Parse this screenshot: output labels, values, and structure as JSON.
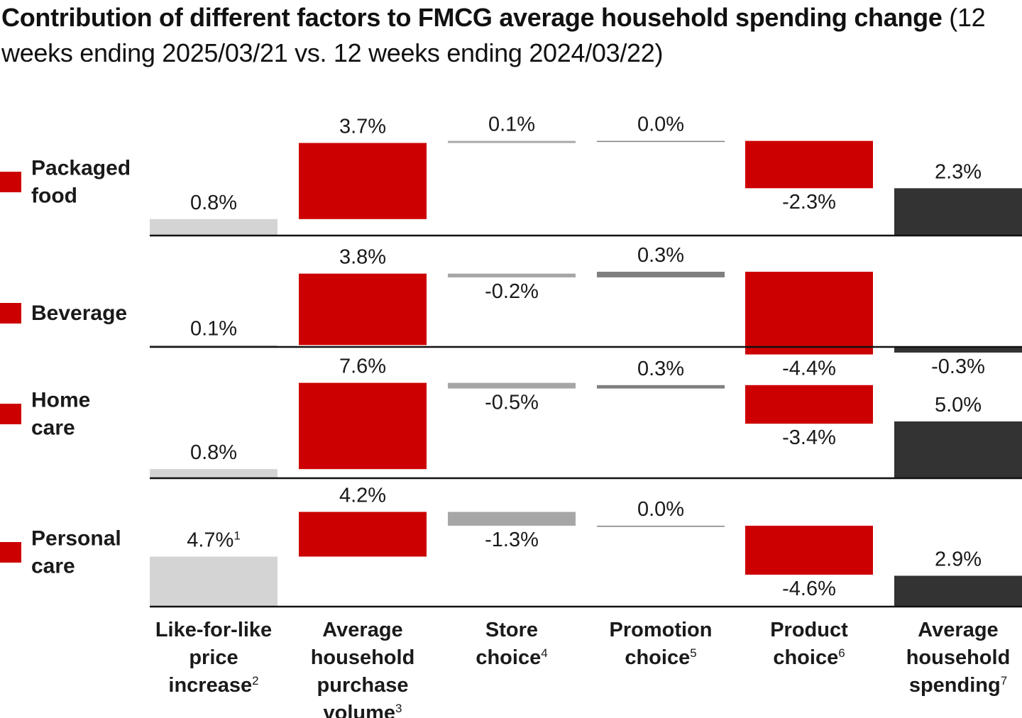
{
  "title": {
    "bold": "Contribution of different factors to FMCG average household spending change",
    "regular": "(12 weeks ending 2025/03/21 vs. 12 weeks ending 2024/03/22)"
  },
  "colors": {
    "price": "#d4d4d4",
    "volume": "#cc0000",
    "store": "#a6a6a6",
    "promotion": "#7f7f7f",
    "product": "#cc0000",
    "total": "#333333",
    "legend": "#cc0000",
    "axis": "#111111"
  },
  "chart_data": {
    "type": "waterfall",
    "title": "Contribution of different factors to FMCG average household spending change (12 weeks ending 2025/03/21 vs. 12 weeks ending 2024/03/22)",
    "unit": "%",
    "columns": [
      {
        "key": "price",
        "lines": [
          "Like-for-like",
          "price",
          "increase"
        ],
        "footnote": "2"
      },
      {
        "key": "volume",
        "lines": [
          "Average",
          "household",
          "purchase",
          "volume"
        ],
        "footnote": "3"
      },
      {
        "key": "store",
        "lines": [
          "Store",
          "choice"
        ],
        "footnote": "4"
      },
      {
        "key": "promotion",
        "lines": [
          "Promotion",
          "choice"
        ],
        "footnote": "5"
      },
      {
        "key": "product",
        "lines": [
          "Product",
          "choice"
        ],
        "footnote": "6"
      },
      {
        "key": "total",
        "lines": [
          "Average",
          "household",
          "spending"
        ],
        "footnote": "7"
      }
    ],
    "series": [
      {
        "name": "Packaged food",
        "name_lines": [
          "Packaged",
          "food"
        ],
        "values": [
          0.8,
          3.7,
          0.1,
          0.0,
          -2.3,
          2.3
        ],
        "labels": [
          "0.8%",
          "3.7%",
          "0.1%",
          "0.0%",
          "-2.3%",
          "2.3%"
        ],
        "label_footnotes": [
          "",
          "",
          "",
          "",
          "",
          ""
        ]
      },
      {
        "name": "Beverage",
        "name_lines": [
          "Beverage"
        ],
        "values": [
          0.1,
          3.8,
          -0.2,
          0.3,
          -4.4,
          -0.3
        ],
        "labels": [
          "0.1%",
          "3.8%",
          "-0.2%",
          "0.3%",
          "-4.4%",
          "-0.3%"
        ],
        "label_footnotes": [
          "",
          "",
          "",
          "",
          "",
          ""
        ]
      },
      {
        "name": "Home care",
        "name_lines": [
          "Home",
          "care"
        ],
        "values": [
          0.8,
          7.6,
          -0.5,
          0.3,
          -3.4,
          5.0
        ],
        "labels": [
          "0.8%",
          "7.6%",
          "-0.5%",
          "0.3%",
          "-3.4%",
          "5.0%"
        ],
        "label_footnotes": [
          "",
          "",
          "",
          "",
          "",
          ""
        ]
      },
      {
        "name": "Personal care",
        "name_lines": [
          "Personal",
          "care"
        ],
        "values": [
          4.7,
          4.2,
          -1.3,
          0.0,
          -4.6,
          2.9
        ],
        "labels": [
          "4.7%",
          "4.2%",
          "-1.3%",
          "0.0%",
          "-4.6%",
          "2.9%"
        ],
        "label_footnotes": [
          "1",
          "",
          "",
          "",
          "",
          ""
        ]
      }
    ]
  }
}
